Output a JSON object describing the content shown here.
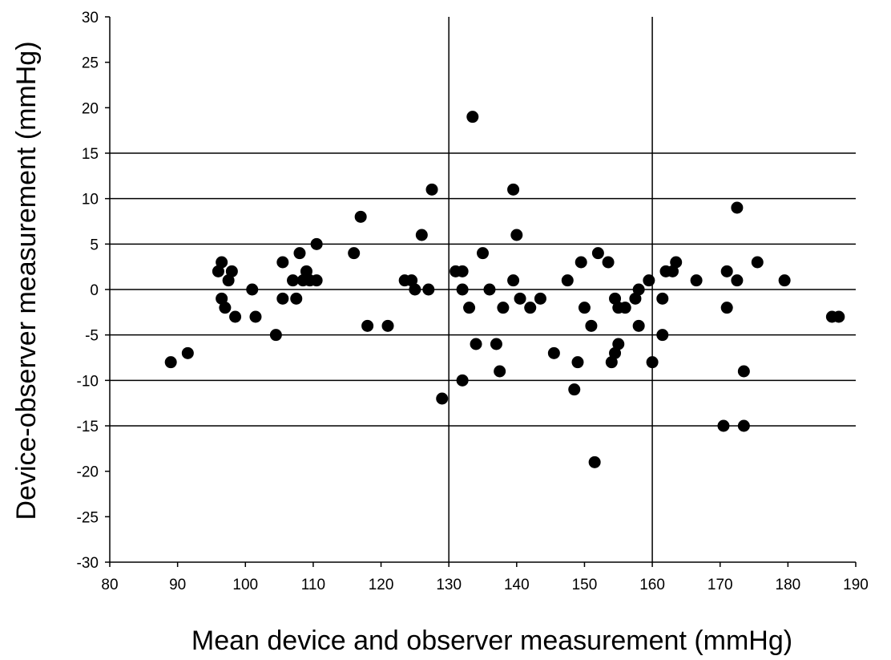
{
  "chart_data": {
    "type": "scatter",
    "title": "",
    "xlabel": "Mean device and observer measurement (mmHg)",
    "ylabel": "Device-observer measurement (mmHg)",
    "xlim": [
      80,
      190
    ],
    "ylim": [
      -30,
      30
    ],
    "x_ticks": [
      "80",
      "90",
      "100",
      "110",
      "120",
      "130",
      "140",
      "150",
      "160",
      "170",
      "180",
      "190"
    ],
    "y_ticks": [
      "30",
      "25",
      "20",
      "15",
      "10",
      "5",
      "0",
      "-5",
      "-10",
      "-15",
      "-20",
      "-25",
      "-30"
    ],
    "horizontal_reference_lines": [
      15,
      10,
      5,
      0,
      -5,
      -10,
      -15
    ],
    "vertical_reference_lines": [
      130,
      160
    ],
    "legend": "none",
    "marker_color": "#000000",
    "points": [
      {
        "x": 89,
        "y": -8
      },
      {
        "x": 91.5,
        "y": -7
      },
      {
        "x": 96,
        "y": 2
      },
      {
        "x": 96.5,
        "y": 3
      },
      {
        "x": 96.5,
        "y": -1
      },
      {
        "x": 97,
        "y": -2
      },
      {
        "x": 97.5,
        "y": 1
      },
      {
        "x": 98,
        "y": 2
      },
      {
        "x": 98.5,
        "y": -3
      },
      {
        "x": 101,
        "y": 0
      },
      {
        "x": 101.5,
        "y": -3
      },
      {
        "x": 104.5,
        "y": -5
      },
      {
        "x": 105.5,
        "y": 3
      },
      {
        "x": 105.5,
        "y": -1
      },
      {
        "x": 107,
        "y": 1
      },
      {
        "x": 107.5,
        "y": -1
      },
      {
        "x": 108,
        "y": 4
      },
      {
        "x": 108.5,
        "y": 1
      },
      {
        "x": 109,
        "y": 2
      },
      {
        "x": 109.5,
        "y": 1
      },
      {
        "x": 110.5,
        "y": 5
      },
      {
        "x": 110.5,
        "y": 1
      },
      {
        "x": 116,
        "y": 4
      },
      {
        "x": 117,
        "y": 8
      },
      {
        "x": 118,
        "y": -4
      },
      {
        "x": 121,
        "y": -4
      },
      {
        "x": 123.5,
        "y": 1
      },
      {
        "x": 124.5,
        "y": 1
      },
      {
        "x": 125,
        "y": 0
      },
      {
        "x": 126,
        "y": 6
      },
      {
        "x": 127,
        "y": 0
      },
      {
        "x": 127.5,
        "y": 11
      },
      {
        "x": 129,
        "y": -12
      },
      {
        "x": 131,
        "y": 2
      },
      {
        "x": 132,
        "y": 2
      },
      {
        "x": 132,
        "y": 0
      },
      {
        "x": 132,
        "y": -10
      },
      {
        "x": 133,
        "y": -2
      },
      {
        "x": 133.5,
        "y": 19
      },
      {
        "x": 134,
        "y": -6
      },
      {
        "x": 135,
        "y": 4
      },
      {
        "x": 136,
        "y": 0
      },
      {
        "x": 137,
        "y": -6
      },
      {
        "x": 137.5,
        "y": -9
      },
      {
        "x": 138,
        "y": -2
      },
      {
        "x": 139.5,
        "y": 11
      },
      {
        "x": 139.5,
        "y": 1
      },
      {
        "x": 140,
        "y": 6
      },
      {
        "x": 140.5,
        "y": -1
      },
      {
        "x": 142,
        "y": -2
      },
      {
        "x": 143.5,
        "y": -1
      },
      {
        "x": 145.5,
        "y": -7
      },
      {
        "x": 147.5,
        "y": 1
      },
      {
        "x": 148.5,
        "y": -11
      },
      {
        "x": 149,
        "y": -8
      },
      {
        "x": 149.5,
        "y": 3
      },
      {
        "x": 150,
        "y": -2
      },
      {
        "x": 151,
        "y": -4
      },
      {
        "x": 151.5,
        "y": -19
      },
      {
        "x": 152,
        "y": 4
      },
      {
        "x": 153.5,
        "y": 3
      },
      {
        "x": 154,
        "y": -8
      },
      {
        "x": 154.5,
        "y": -7
      },
      {
        "x": 154.5,
        "y": -1
      },
      {
        "x": 155,
        "y": -2
      },
      {
        "x": 155,
        "y": -6
      },
      {
        "x": 156,
        "y": -2
      },
      {
        "x": 157.5,
        "y": -1
      },
      {
        "x": 158,
        "y": 0
      },
      {
        "x": 158,
        "y": -4
      },
      {
        "x": 159.5,
        "y": 1
      },
      {
        "x": 160,
        "y": -8
      },
      {
        "x": 161.5,
        "y": -1
      },
      {
        "x": 161.5,
        "y": -5
      },
      {
        "x": 162,
        "y": 2
      },
      {
        "x": 163,
        "y": 2
      },
      {
        "x": 163.5,
        "y": 3
      },
      {
        "x": 166.5,
        "y": 1
      },
      {
        "x": 170.5,
        "y": -15
      },
      {
        "x": 171,
        "y": 2
      },
      {
        "x": 171,
        "y": -2
      },
      {
        "x": 172.5,
        "y": 9
      },
      {
        "x": 172.5,
        "y": 1
      },
      {
        "x": 173.5,
        "y": -9
      },
      {
        "x": 173.5,
        "y": -15
      },
      {
        "x": 175.5,
        "y": 3
      },
      {
        "x": 179.5,
        "y": 1
      },
      {
        "x": 186.5,
        "y": -3
      },
      {
        "x": 187.5,
        "y": -3
      }
    ]
  }
}
